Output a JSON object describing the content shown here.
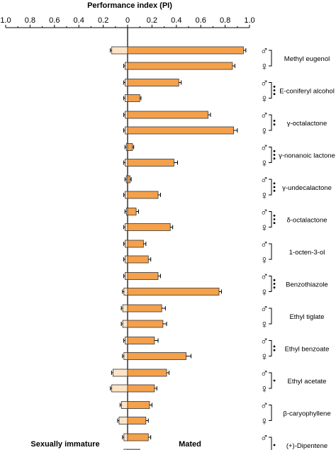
{
  "chart_data": {
    "type": "bar",
    "title": "Performance index (PI)",
    "xlim": [
      -1.0,
      1.0
    ],
    "x_ticks": [
      {
        "value": -1.0,
        "label": "1.0"
      },
      {
        "value": -0.8,
        "label": "0.8"
      },
      {
        "value": -0.6,
        "label": "0.6"
      },
      {
        "value": -0.4,
        "label": "0.4"
      },
      {
        "value": -0.2,
        "label": "0.2"
      },
      {
        "value": 0.0,
        "label": "0"
      },
      {
        "value": 0.2,
        "label": "0.2"
      },
      {
        "value": 0.4,
        "label": "0.4"
      },
      {
        "value": 0.6,
        "label": "0.6"
      },
      {
        "value": 0.8,
        "label": "0.8"
      },
      {
        "value": 1.0,
        "label": "1.0"
      }
    ],
    "left_label": "Sexually immature",
    "right_label": "Mated",
    "male_symbol": "♂",
    "female_symbol": "♀",
    "series": [
      {
        "group": "Sexually immature",
        "color": "#fde3c4"
      },
      {
        "group": "Mated",
        "color": "#f5a04a"
      }
    ],
    "categories": [
      {
        "label": "Methyl eugenol",
        "sig": "",
        "male": {
          "immature": 0.13,
          "mated": 0.95,
          "err_mated": 0.02
        },
        "female": {
          "immature": 0.02,
          "mated": 0.86,
          "err_mated": 0.02
        }
      },
      {
        "label": "E-coniferyl alcohol",
        "sig": "***",
        "male": {
          "immature": 0.02,
          "mated": 0.42,
          "err_mated": 0.02
        },
        "female": {
          "immature": 0.02,
          "mated": 0.1,
          "err_mated": 0.01
        }
      },
      {
        "label": "γ-octalactone",
        "sig": "**",
        "male": {
          "immature": 0.02,
          "mated": 0.66,
          "err_mated": 0.02
        },
        "female": {
          "immature": 0.02,
          "mated": 0.87,
          "err_mated": 0.03
        }
      },
      {
        "label": "γ-nonanoic lactone",
        "sig": "***",
        "male": {
          "immature": 0.01,
          "mated": 0.04,
          "err_mated": 0.01
        },
        "female": {
          "immature": 0.02,
          "mated": 0.38,
          "err_mated": 0.03
        }
      },
      {
        "label": "γ-undecalactone",
        "sig": "***",
        "male": {
          "immature": 0.01,
          "mated": 0.02,
          "err_mated": 0.01
        },
        "female": {
          "immature": 0.02,
          "mated": 0.25,
          "err_mated": 0.02
        }
      },
      {
        "label": "δ-octalactone",
        "sig": "***",
        "male": {
          "immature": 0.01,
          "mated": 0.07,
          "err_mated": 0.02
        },
        "female": {
          "immature": 0.02,
          "mated": 0.35,
          "err_mated": 0.02
        }
      },
      {
        "label": "1-octen-3-ol",
        "sig": "",
        "male": {
          "immature": 0.02,
          "mated": 0.13,
          "err_mated": 0.02
        },
        "female": {
          "immature": 0.02,
          "mated": 0.17,
          "err_mated": 0.02
        }
      },
      {
        "label": "Benzothiazole",
        "sig": "***",
        "male": {
          "immature": 0.02,
          "mated": 0.25,
          "err_mated": 0.02
        },
        "female": {
          "immature": 0.03,
          "mated": 0.75,
          "err_mated": 0.02
        }
      },
      {
        "label": "Ethyl tiglate",
        "sig": "",
        "male": {
          "immature": 0.04,
          "mated": 0.28,
          "err_mated": 0.03
        },
        "female": {
          "immature": 0.04,
          "mated": 0.29,
          "err_mated": 0.03
        }
      },
      {
        "label": "Ethyl benzoate",
        "sig": "**",
        "male": {
          "immature": 0.02,
          "mated": 0.22,
          "err_mated": 0.03
        },
        "female": {
          "immature": 0.03,
          "mated": 0.48,
          "err_mated": 0.04
        }
      },
      {
        "label": "Ethyl acetate",
        "sig": "*",
        "male": {
          "immature": 0.12,
          "mated": 0.32,
          "err_mated": 0.02
        },
        "female": {
          "immature": 0.13,
          "mated": 0.22,
          "err_mated": 0.02
        }
      },
      {
        "label": "β-caryophyllene",
        "sig": "",
        "male": {
          "immature": 0.05,
          "mated": 0.18,
          "err_mated": 0.02
        },
        "female": {
          "immature": 0.07,
          "mated": 0.15,
          "err_mated": 0.02
        }
      },
      {
        "label": "(+)-Dipentene",
        "sig": "*",
        "male": {
          "immature": 0.03,
          "mated": 0.17,
          "err_mated": 0.02
        },
        "female": {
          "immature": 0.03,
          "mated": 0.1,
          "err_mated": 0.02
        }
      }
    ]
  }
}
